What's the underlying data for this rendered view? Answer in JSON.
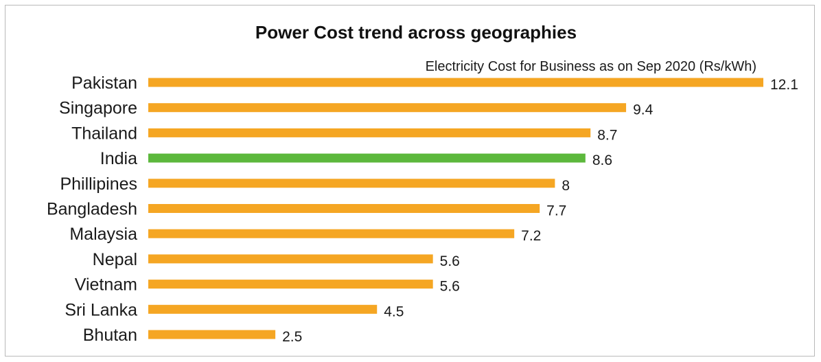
{
  "chart_data": {
    "type": "bar",
    "orientation": "horizontal",
    "title": "Power Cost trend across geographies",
    "subtitle": "Electricity Cost for Business as on Sep 2020 (Rs/kWh)",
    "categories": [
      "Pakistan",
      "Singapore",
      "Thailand",
      "India",
      "Phillipines",
      "Bangladesh",
      "Malaysia",
      "Nepal",
      "Vietnam",
      "Sri Lanka",
      "Bhutan"
    ],
    "values": [
      12.1,
      9.4,
      8.7,
      8.6,
      8,
      7.7,
      7.2,
      5.6,
      5.6,
      4.5,
      2.5
    ],
    "value_labels": [
      "12.1",
      "9.4",
      "8.7",
      "8.6",
      "8",
      "7.7",
      "7.2",
      "5.6",
      "5.6",
      "4.5",
      "2.5"
    ],
    "highlight_category": "India",
    "colors": {
      "bar": "#f5a623",
      "highlight": "#5cb83c"
    },
    "xlim": [
      0,
      12.1
    ],
    "grid": false,
    "legend": "none"
  }
}
